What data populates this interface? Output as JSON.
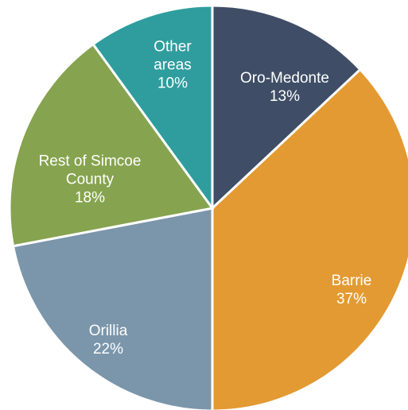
{
  "chart_data": {
    "type": "pie",
    "categories": [
      "Oro-Medonte",
      "Barrie",
      "Orillia",
      "Rest of Simcoe County",
      "Other areas"
    ],
    "values": [
      13,
      37,
      22,
      18,
      10
    ],
    "value_labels": [
      "13%",
      "37%",
      "22%",
      "18%",
      "10%"
    ],
    "colors": [
      "#3f4e66",
      "#e39a33",
      "#7b96ab",
      "#86a34f",
      "#2f9d9e"
    ]
  }
}
